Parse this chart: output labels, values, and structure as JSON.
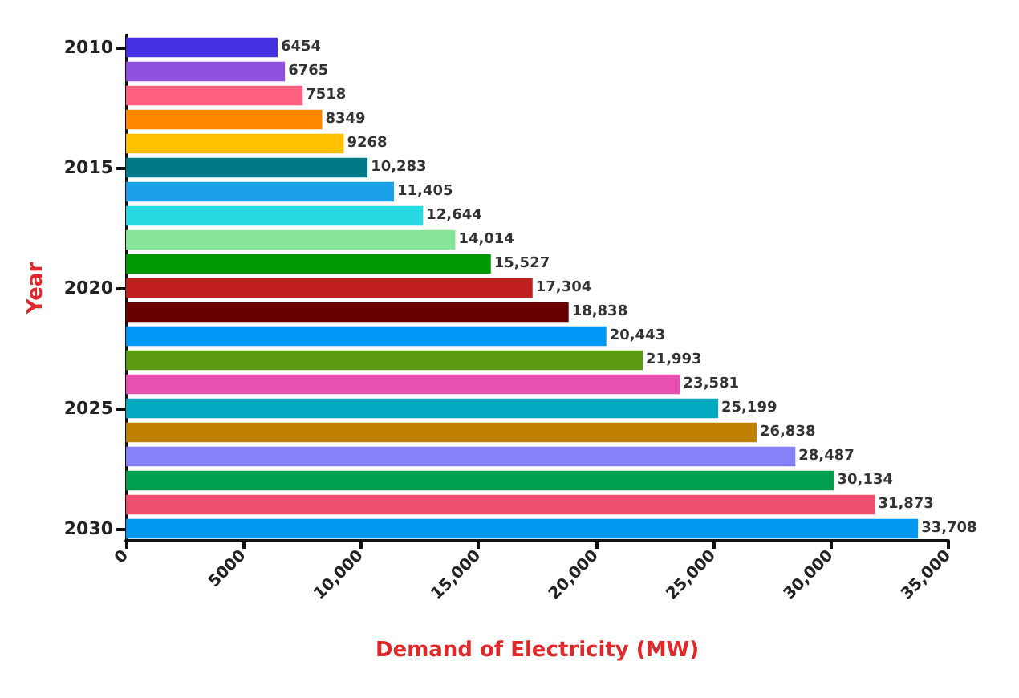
{
  "chart_data": {
    "type": "bar",
    "orientation": "horizontal",
    "xlabel": "Demand of Electricity (MW)",
    "ylabel": "Year",
    "categories": [
      "2010",
      null,
      null,
      null,
      null,
      "2015",
      null,
      null,
      null,
      null,
      "2020",
      null,
      null,
      null,
      null,
      "2025",
      null,
      null,
      null,
      null,
      "2030"
    ],
    "values": [
      6454,
      6765,
      7518,
      8349,
      9268,
      10283,
      11405,
      12644,
      14014,
      15527,
      17304,
      18838,
      20443,
      21993,
      23581,
      25199,
      26838,
      28487,
      30134,
      31873,
      33708
    ],
    "value_labels": [
      "6454",
      "6765",
      "7518",
      "8349",
      "9268",
      "10,283",
      "11,405",
      "12,644",
      "14,014",
      "15,527",
      "17,304",
      "18,838",
      "20,443",
      "21,993",
      "23,581",
      "25,199",
      "26,838",
      "28,487",
      "30,134",
      "31,873",
      "33,708"
    ],
    "colors": [
      "#4430e0",
      "#9050e0",
      "#ff6080",
      "#ff8800",
      "#ffc000",
      "#007888",
      "#1ca0e8",
      "#28d8e0",
      "#88e498",
      "#009800",
      "#c02020",
      "#680000",
      "#0098f8",
      "#5a9a10",
      "#e850b0",
      "#00a8c0",
      "#c08000",
      "#8880f8",
      "#00a050",
      "#f05070",
      "#0098f0"
    ],
    "xlim": [
      0,
      35000
    ],
    "xticks": [
      0,
      5000,
      {
        "value": 10000,
        "label": "10,000"
      },
      {
        "value": 15000,
        "label": "15,000"
      },
      {
        "value": 20000,
        "label": "20,000"
      },
      {
        "value": 25000,
        "label": "25,000"
      },
      {
        "value": 30000,
        "label": "30,000"
      },
      {
        "value": 35000,
        "label": "35,000"
      }
    ],
    "grid": false
  }
}
